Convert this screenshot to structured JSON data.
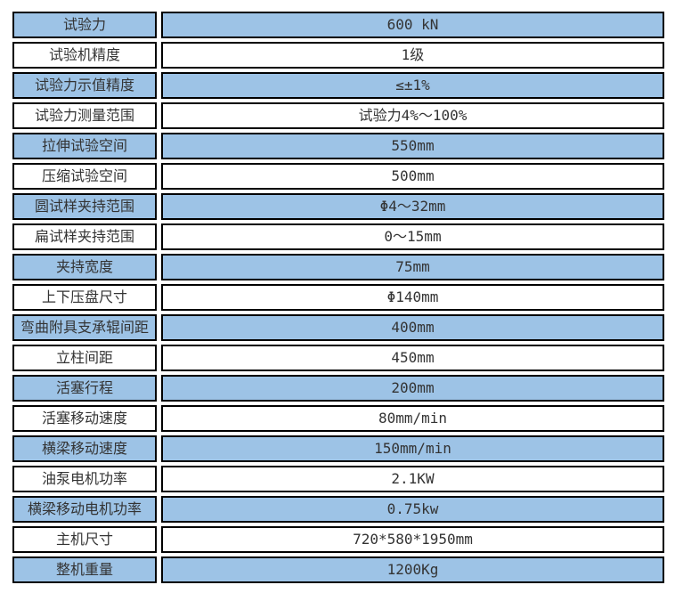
{
  "table": {
    "accent_blue": "#9DC3E6",
    "border_color": "#000000",
    "text_color": "#333333",
    "rows": [
      {
        "label": "试验力",
        "value": "600 kN"
      },
      {
        "label": "试验机精度",
        "value": "1级"
      },
      {
        "label": "试验力示值精度",
        "value": "≤±1%"
      },
      {
        "label": "试验力测量范围",
        "value": "试验力4%～100%"
      },
      {
        "label": "拉伸试验空间",
        "value": "550mm"
      },
      {
        "label": "压缩试验空间",
        "value": "500mm"
      },
      {
        "label": "圆试样夹持范围",
        "value": "Φ4～32mm"
      },
      {
        "label": "扁试样夹持范围",
        "value": "0～15mm"
      },
      {
        "label": "夹持宽度",
        "value": "75mm"
      },
      {
        "label": "上下压盘尺寸",
        "value": "Φ140mm"
      },
      {
        "label": "弯曲附具支承辊间距",
        "value": "400mm"
      },
      {
        "label": "立柱间距",
        "value": "450mm"
      },
      {
        "label": "活塞行程",
        "value": "200mm"
      },
      {
        "label": "活塞移动速度",
        "value": "80mm/min"
      },
      {
        "label": "横梁移动速度",
        "value": "150mm/min"
      },
      {
        "label": "油泵电机功率",
        "value": "2.1KW"
      },
      {
        "label": "横梁移动电机功率",
        "value": "0.75kw"
      },
      {
        "label": "主机尺寸",
        "value": "720*580*1950mm"
      },
      {
        "label": "整机重量",
        "value": "1200Kg"
      }
    ]
  }
}
